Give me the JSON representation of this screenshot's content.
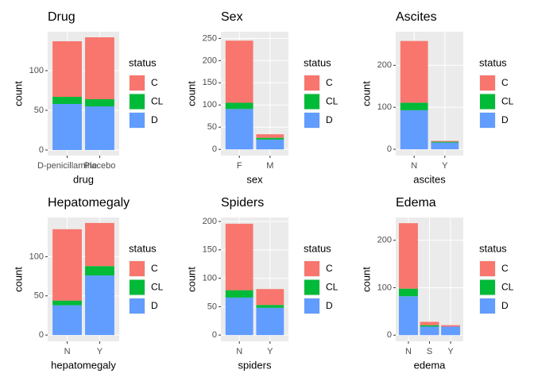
{
  "chart_data": [
    {
      "type": "bar",
      "title": "Drug",
      "xlabel": "drug",
      "ylabel": "count",
      "legend_title": "status",
      "categories": [
        "D-penicillamine",
        "Placebo"
      ],
      "series": [
        {
          "name": "C",
          "color": "#F8766D",
          "values": [
            70,
            78
          ]
        },
        {
          "name": "CL",
          "color": "#00BA38",
          "values": [
            9,
            9
          ]
        },
        {
          "name": "D",
          "color": "#619CFF",
          "values": [
            58,
            55
          ]
        }
      ],
      "ylim": [
        -7,
        149
      ],
      "yticks": [
        0,
        50,
        100
      ]
    },
    {
      "type": "bar",
      "title": "Sex",
      "xlabel": "sex",
      "ylabel": "count",
      "legend_title": "status",
      "categories": [
        "F",
        "M"
      ],
      "series": [
        {
          "name": "C",
          "color": "#F8766D",
          "values": [
            140,
            8
          ]
        },
        {
          "name": "CL",
          "color": "#00BA38",
          "values": [
            14,
            4
          ]
        },
        {
          "name": "D",
          "color": "#619CFF",
          "values": [
            91,
            22
          ]
        }
      ],
      "ylim": [
        -14,
        265
      ],
      "yticks": [
        0,
        50,
        100,
        150,
        200,
        250
      ]
    },
    {
      "type": "bar",
      "title": "Ascites",
      "xlabel": "ascites",
      "ylabel": "count",
      "legend_title": "status",
      "categories": [
        "N",
        "Y"
      ],
      "series": [
        {
          "name": "C",
          "color": "#F8766D",
          "values": [
            147,
            2
          ]
        },
        {
          "name": "CL",
          "color": "#00BA38",
          "values": [
            18,
            2
          ]
        },
        {
          "name": "D",
          "color": "#619CFF",
          "values": [
            93,
            16
          ]
        }
      ],
      "ylim": [
        -15,
        280
      ],
      "yticks": [
        0,
        100,
        200
      ]
    },
    {
      "type": "bar",
      "title": "Hepatomegaly",
      "xlabel": "hepatomegaly",
      "ylabel": "count",
      "legend_title": "status",
      "categories": [
        "N",
        "Y"
      ],
      "series": [
        {
          "name": "C",
          "color": "#F8766D",
          "values": [
            91,
            55
          ]
        },
        {
          "name": "CL",
          "color": "#00BA38",
          "values": [
            6,
            12
          ]
        },
        {
          "name": "D",
          "color": "#619CFF",
          "values": [
            38,
            76
          ]
        }
      ],
      "ylim": [
        -8,
        150
      ],
      "yticks": [
        0,
        50,
        100
      ]
    },
    {
      "type": "bar",
      "title": "Spiders",
      "xlabel": "spiders",
      "ylabel": "count",
      "legend_title": "status",
      "categories": [
        "N",
        "Y"
      ],
      "series": [
        {
          "name": "C",
          "color": "#F8766D",
          "values": [
            117,
            28
          ]
        },
        {
          "name": "CL",
          "color": "#00BA38",
          "values": [
            13,
            5
          ]
        },
        {
          "name": "D",
          "color": "#619CFF",
          "values": [
            66,
            48
          ]
        }
      ],
      "ylim": [
        -11,
        207
      ],
      "yticks": [
        0,
        50,
        100,
        150,
        200
      ]
    },
    {
      "type": "bar",
      "title": "Edema",
      "xlabel": "edema",
      "ylabel": "count",
      "legend_title": "status",
      "categories": [
        "N",
        "S",
        "Y"
      ],
      "series": [
        {
          "name": "C",
          "color": "#F8766D",
          "values": [
            138,
            7,
            3
          ]
        },
        {
          "name": "CL",
          "color": "#00BA38",
          "values": [
            16,
            3,
            0
          ]
        },
        {
          "name": "D",
          "color": "#619CFF",
          "values": [
            82,
            18,
            18
          ]
        }
      ],
      "ylim": [
        -13,
        248
      ],
      "yticks": [
        0,
        100,
        200
      ]
    }
  ]
}
